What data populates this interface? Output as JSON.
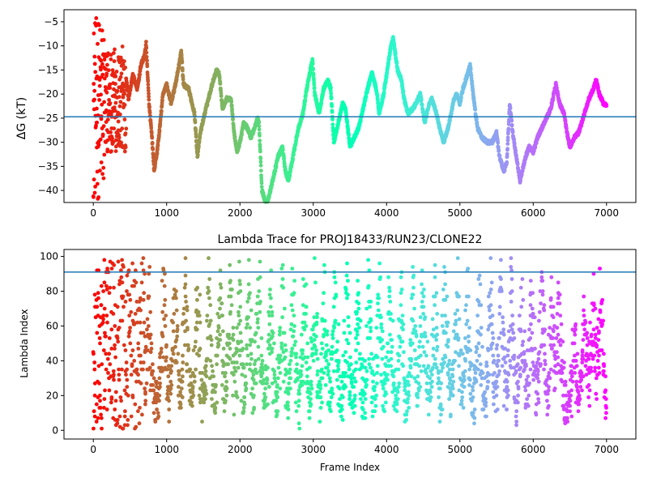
{
  "chart_data": [
    {
      "type": "scatter",
      "title": "",
      "xlabel": "",
      "ylabel": "ΔG (kT)",
      "xlim": [
        -400,
        7400
      ],
      "ylim": [
        -42.5,
        -2.5
      ],
      "xticks": [
        0,
        1000,
        2000,
        3000,
        4000,
        5000,
        6000,
        7000
      ],
      "yticks": [
        -40,
        -35,
        -30,
        -25,
        -20,
        -15,
        -10,
        -5
      ],
      "hline": -24.7,
      "hline_color": "#1f77b4",
      "colormap": "rainbow",
      "colormap_reversed": true,
      "x_max": 7000,
      "profile": [
        [
          0,
          -20
        ],
        [
          60,
          -15
        ],
        [
          120,
          -30
        ],
        [
          180,
          -22
        ],
        [
          240,
          -12
        ],
        [
          300,
          -25
        ],
        [
          360,
          -18
        ],
        [
          420,
          -13
        ],
        [
          480,
          -21
        ],
        [
          540,
          -16
        ],
        [
          600,
          -19
        ],
        [
          650,
          -14
        ],
        [
          700,
          -12
        ],
        [
          720,
          -9.5
        ],
        [
          760,
          -22
        ],
        [
          800,
          -29
        ],
        [
          830,
          -36
        ],
        [
          870,
          -32
        ],
        [
          900,
          -28
        ],
        [
          950,
          -20
        ],
        [
          1000,
          -18
        ],
        [
          1060,
          -22
        ],
        [
          1120,
          -18
        ],
        [
          1180,
          -13
        ],
        [
          1200,
          -11
        ],
        [
          1230,
          -18
        ],
        [
          1300,
          -19
        ],
        [
          1380,
          -24
        ],
        [
          1420,
          -33
        ],
        [
          1460,
          -28
        ],
        [
          1520,
          -24
        ],
        [
          1570,
          -21
        ],
        [
          1620,
          -18
        ],
        [
          1680,
          -15
        ],
        [
          1720,
          -16
        ],
        [
          1760,
          -23
        ],
        [
          1820,
          -21
        ],
        [
          1880,
          -21
        ],
        [
          1920,
          -28
        ],
        [
          1960,
          -32
        ],
        [
          2000,
          -30
        ],
        [
          2050,
          -26
        ],
        [
          2100,
          -27
        ],
        [
          2150,
          -29
        ],
        [
          2200,
          -27
        ],
        [
          2240,
          -25
        ],
        [
          2260,
          -26
        ],
        [
          2300,
          -40
        ],
        [
          2360,
          -43
        ],
        [
          2400,
          -41
        ],
        [
          2460,
          -37
        ],
        [
          2520,
          -33
        ],
        [
          2580,
          -31
        ],
        [
          2620,
          -36
        ],
        [
          2660,
          -38
        ],
        [
          2700,
          -35
        ],
        [
          2760,
          -30
        ],
        [
          2800,
          -27
        ],
        [
          2860,
          -24
        ],
        [
          2900,
          -20
        ],
        [
          2960,
          -15
        ],
        [
          2990,
          -13
        ],
        [
          3020,
          -20
        ],
        [
          3080,
          -24
        ],
        [
          3140,
          -19
        ],
        [
          3200,
          -17
        ],
        [
          3240,
          -19
        ],
        [
          3280,
          -30
        ],
        [
          3340,
          -26
        ],
        [
          3400,
          -22
        ],
        [
          3440,
          -23
        ],
        [
          3500,
          -31
        ],
        [
          3560,
          -29
        ],
        [
          3620,
          -27
        ],
        [
          3680,
          -23
        ],
        [
          3740,
          -19
        ],
        [
          3800,
          -15.5
        ],
        [
          3860,
          -19
        ],
        [
          3900,
          -24
        ],
        [
          3960,
          -20
        ],
        [
          4020,
          -14
        ],
        [
          4060,
          -10
        ],
        [
          4090,
          -8.5
        ],
        [
          4150,
          -15
        ],
        [
          4200,
          -17
        ],
        [
          4240,
          -21
        ],
        [
          4290,
          -24
        ],
        [
          4360,
          -23
        ],
        [
          4400,
          -22
        ],
        [
          4460,
          -20
        ],
        [
          4520,
          -26
        ],
        [
          4580,
          -22
        ],
        [
          4620,
          -21
        ],
        [
          4680,
          -24
        ],
        [
          4740,
          -28
        ],
        [
          4780,
          -30
        ],
        [
          4840,
          -27
        ],
        [
          4880,
          -24
        ],
        [
          4920,
          -21
        ],
        [
          4960,
          -20
        ],
        [
          5000,
          -22
        ],
        [
          5040,
          -19
        ],
        [
          5100,
          -16
        ],
        [
          5140,
          -14
        ],
        [
          5180,
          -20
        ],
        [
          5240,
          -27
        ],
        [
          5300,
          -29
        ],
        [
          5380,
          -30
        ],
        [
          5440,
          -30
        ],
        [
          5500,
          -28
        ],
        [
          5540,
          -33
        ],
        [
          5600,
          -36
        ],
        [
          5640,
          -34
        ],
        [
          5680,
          -22
        ],
        [
          5720,
          -28
        ],
        [
          5780,
          -34
        ],
        [
          5820,
          -38
        ],
        [
          5880,
          -34
        ],
        [
          5940,
          -31
        ],
        [
          6000,
          -32
        ],
        [
          6060,
          -29
        ],
        [
          6120,
          -27
        ],
        [
          6180,
          -25
        ],
        [
          6240,
          -23
        ],
        [
          6280,
          -20
        ],
        [
          6310,
          -18
        ],
        [
          6360,
          -22
        ],
        [
          6420,
          -24
        ],
        [
          6460,
          -28
        ],
        [
          6500,
          -31
        ],
        [
          6560,
          -29
        ],
        [
          6620,
          -28
        ],
        [
          6700,
          -24
        ],
        [
          6760,
          -21
        ],
        [
          6820,
          -19
        ],
        [
          6860,
          -17
        ],
        [
          6900,
          -20
        ],
        [
          6960,
          -22
        ],
        [
          7000,
          -22.5
        ]
      ]
    },
    {
      "type": "scatter",
      "title": "Lambda Trace for PROJ18433/RUN23/CLONE22",
      "xlabel": "Frame Index",
      "ylabel": "Lambda Index",
      "xlim": [
        -400,
        7400
      ],
      "ylim": [
        -5,
        104
      ],
      "xticks": [
        0,
        1000,
        2000,
        3000,
        4000,
        5000,
        6000,
        7000
      ],
      "yticks": [
        0,
        20,
        40,
        60,
        80,
        100
      ],
      "hline": 91,
      "hline_color": "#1f77b4",
      "colormap": "rainbow",
      "colormap_reversed": true,
      "x_max": 7000,
      "lambda_max": 99,
      "sweep_centers": [
        30,
        150,
        300,
        480,
        640,
        760,
        960,
        1110,
        1260,
        1420,
        1570,
        1730,
        1870,
        1990,
        2120,
        2260,
        2420,
        2580,
        2720,
        2880,
        3020,
        3160,
        3300,
        3460,
        3610,
        3760,
        3900,
        4040,
        4200,
        4360,
        4500,
        4660,
        4800,
        4960,
        5100,
        5260,
        5420,
        5560,
        5700,
        5840,
        5980,
        6120,
        6260,
        6350,
        6560,
        6700,
        6820,
        6920
      ],
      "sweep_tops": [
        99,
        99,
        99,
        99,
        99,
        99,
        99,
        99,
        99,
        99,
        99,
        99,
        99,
        99,
        99,
        99,
        99,
        99,
        99,
        99,
        99,
        99,
        99,
        99,
        99,
        99,
        99,
        99,
        99,
        99,
        99,
        99,
        99,
        99,
        99,
        99,
        99,
        99,
        99,
        99,
        99,
        99,
        99,
        99,
        70,
        80,
        99,
        99
      ]
    }
  ]
}
